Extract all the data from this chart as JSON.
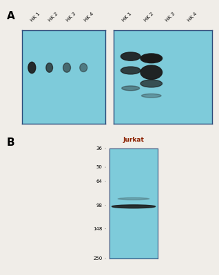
{
  "bg_color": "#f0ede8",
  "blot_blue": "#7ecbda",
  "band_dark": "#1a1a1a",
  "border_color": "#2a4a7a",
  "panel_A_label": "A",
  "panel_B_label": "B",
  "panel_A_left_labels": [
    "HK 1",
    "HK 2",
    "HK 3",
    "HK 4"
  ],
  "panel_A_right_labels": [
    "HK 1",
    "HK 2",
    "HK 3",
    "HK 4"
  ],
  "panel_B_col_label": "Jurkat",
  "panel_B_mw_values": [
    250,
    148,
    98,
    64,
    50,
    36
  ],
  "jurkat_color": "#8B2000"
}
